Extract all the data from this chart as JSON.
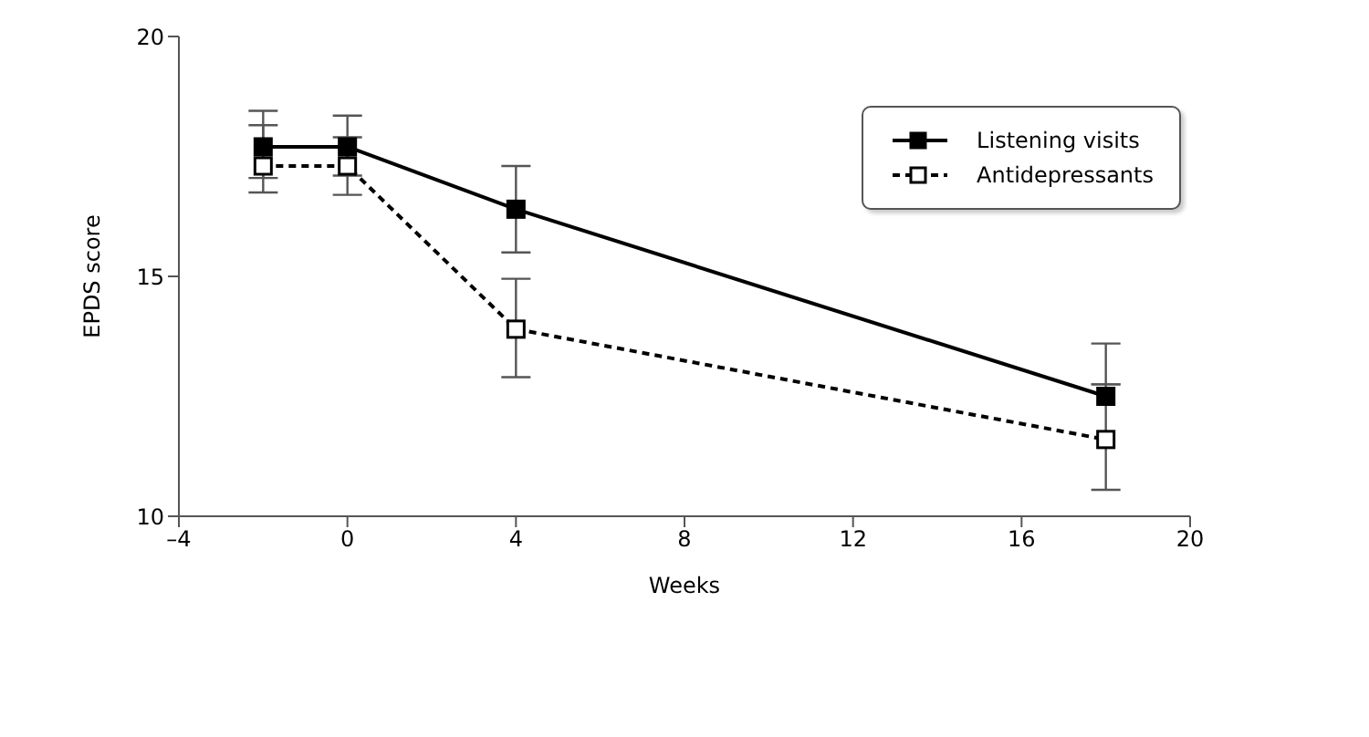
{
  "chart_data": {
    "type": "line",
    "xlabel": "Weeks",
    "ylabel": "EPDS score",
    "x": [
      -2,
      0,
      4,
      18
    ],
    "series": [
      {
        "name": "Listening visits",
        "color": "#000000",
        "line_style": "solid",
        "values": [
          17.7,
          17.7,
          16.4,
          12.5
        ],
        "errors": [
          [
            17.05,
            18.45
          ],
          [
            17.1,
            18.35
          ],
          [
            15.5,
            17.3
          ],
          [
            12.75,
            13.6
          ]
        ]
      },
      {
        "name": "Antidepressants",
        "color": "#000000",
        "line_style": "dashed",
        "values": [
          17.3,
          17.3,
          13.9,
          11.6
        ],
        "errors": [
          [
            16.75,
            18.15
          ],
          [
            16.7,
            17.9
          ],
          [
            12.9,
            14.95
          ],
          [
            10.55,
            12.75
          ]
        ]
      }
    ],
    "xlim": [
      -4,
      20
    ],
    "xticks": [
      {
        "value": -4,
        "label": "–4"
      },
      0,
      4,
      8,
      12,
      16,
      20
    ],
    "ylim": [
      10,
      20
    ],
    "yticks": [
      10,
      15,
      20
    ],
    "legend": "top right",
    "marker": "square"
  }
}
